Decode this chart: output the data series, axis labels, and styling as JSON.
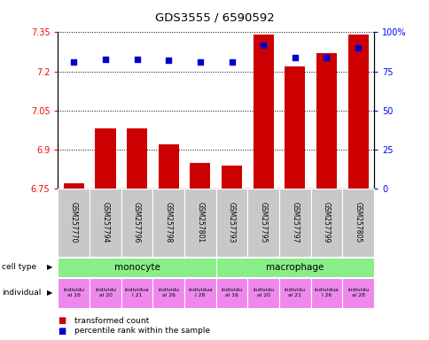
{
  "title": "GDS3555 / 6590592",
  "samples": [
    "GSM257770",
    "GSM257794",
    "GSM257796",
    "GSM257798",
    "GSM257801",
    "GSM257793",
    "GSM257795",
    "GSM257797",
    "GSM257799",
    "GSM257805"
  ],
  "transformed_counts": [
    6.77,
    6.98,
    6.98,
    6.92,
    6.85,
    6.84,
    7.34,
    7.22,
    7.27,
    7.34
  ],
  "percentile_ranks": [
    81,
    83,
    83,
    82,
    81,
    81,
    92,
    84,
    84,
    90
  ],
  "ylim": [
    6.75,
    7.35
  ],
  "yticks": [
    6.75,
    6.9,
    7.05,
    7.2,
    7.35
  ],
  "y2ticks": [
    0,
    25,
    50,
    75,
    100
  ],
  "bar_color": "#cc0000",
  "dot_color": "#0000cc",
  "cell_type_data": [
    {
      "label": "monocyte",
      "start": 0,
      "end": 5,
      "color": "#88ee88"
    },
    {
      "label": "macrophage",
      "start": 5,
      "end": 10,
      "color": "#88ee88"
    }
  ],
  "indiv_labels": [
    "individu\nal 16",
    "individu\nal 20",
    "individua\nl 21",
    "individu\nal 26",
    "individua\nl 28",
    "individu\nal 16",
    "individu\nal 20",
    "individu\nal 21",
    "individua\nl 26",
    "individu\nal 28"
  ],
  "indiv_color": "#ee88ee",
  "sample_bg_color": "#c8c8c8",
  "legend_red_label": "transformed count",
  "legend_blue_label": "percentile rank within the sample"
}
